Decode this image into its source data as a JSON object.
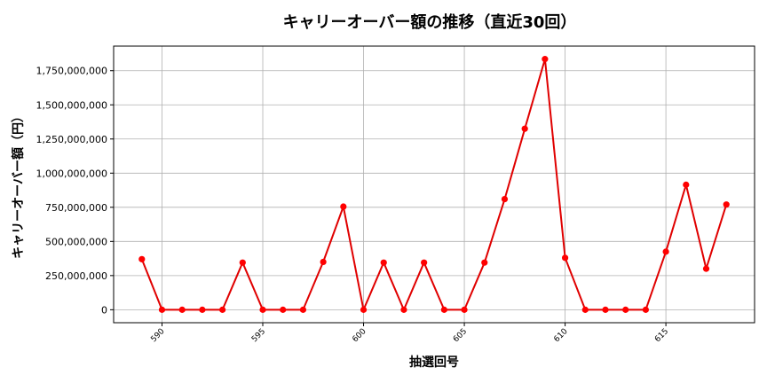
{
  "chart_data": {
    "type": "line",
    "title": "キャリーオーバー額の推移（直近30回）",
    "xlabel": "抽選回号",
    "ylabel": "キャリーオーバー額（円）",
    "x": [
      589,
      590,
      591,
      592,
      593,
      594,
      595,
      596,
      597,
      598,
      599,
      600,
      601,
      602,
      603,
      604,
      605,
      606,
      607,
      608,
      609,
      610,
      611,
      612,
      613,
      614,
      615,
      616,
      617,
      618
    ],
    "series": [
      {
        "values": [
          370000000,
          0,
          0,
          0,
          0,
          345000000,
          0,
          0,
          0,
          350000000,
          755000000,
          0,
          345000000,
          0,
          345000000,
          0,
          0,
          345000000,
          810000000,
          1325000000,
          1835000000,
          380000000,
          0,
          0,
          0,
          0,
          425000000,
          915000000,
          300000000,
          770000000
        ]
      }
    ],
    "xticks": [
      "590",
      "595",
      "600",
      "605",
      "610",
      "615"
    ],
    "xtick_values": [
      590,
      595,
      600,
      605,
      610,
      615
    ],
    "yticks": [
      "0",
      "250,000,000",
      "500,000,000",
      "750,000,000",
      "1,000,000,000",
      "1,250,000,000",
      "1,500,000,000",
      "1,750,000,000"
    ],
    "ytick_values": [
      0,
      250000000,
      500000000,
      750000000,
      1000000000,
      1250000000,
      1500000000,
      1750000000
    ],
    "xlim": [
      587.6,
      619.4
    ],
    "ylim": [
      -95000000,
      1930000000
    ],
    "grid": true,
    "line_color": "#e00000",
    "marker_color": "#ff0000"
  }
}
